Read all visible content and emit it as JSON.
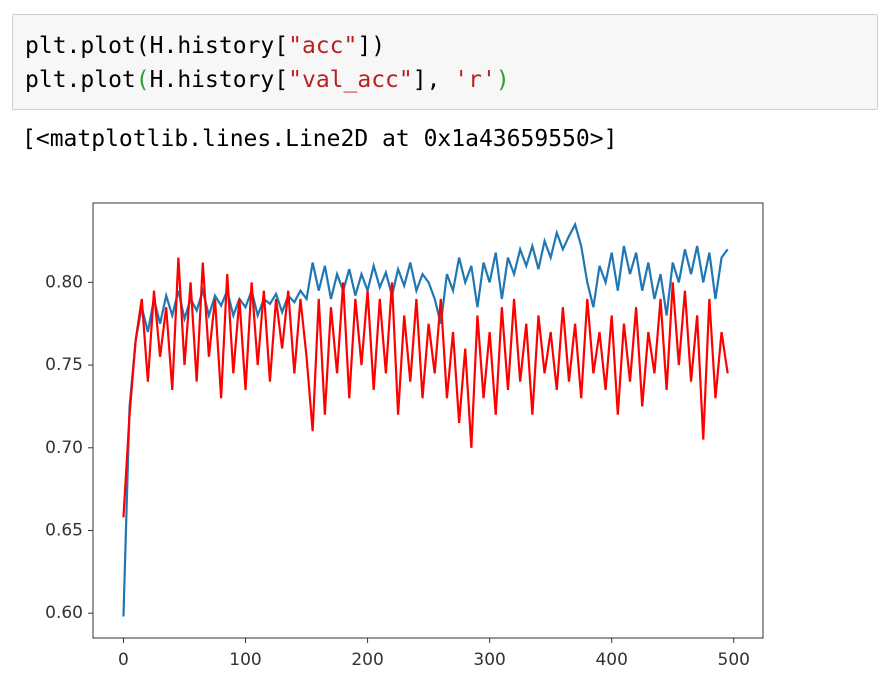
{
  "code": {
    "lines": [
      [
        "plt.plot(H.history[",
        "\"acc\"",
        "])"
      ],
      [
        "plt.plot",
        "(",
        "H.history[",
        "\"val_acc\"",
        "], ",
        "'r'",
        ")"
      ]
    ]
  },
  "output": "[<matplotlib.lines.Line2D at 0x1a43659550>]",
  "chart_data": {
    "type": "line",
    "x": [
      0,
      5,
      10,
      15,
      20,
      25,
      30,
      35,
      40,
      45,
      50,
      55,
      60,
      65,
      70,
      75,
      80,
      85,
      90,
      95,
      100,
      105,
      110,
      115,
      120,
      125,
      130,
      135,
      140,
      145,
      150,
      155,
      160,
      165,
      170,
      175,
      180,
      185,
      190,
      195,
      200,
      205,
      210,
      215,
      220,
      225,
      230,
      235,
      240,
      245,
      250,
      255,
      260,
      265,
      270,
      275,
      280,
      285,
      290,
      295,
      300,
      305,
      310,
      315,
      320,
      325,
      330,
      335,
      340,
      345,
      350,
      355,
      360,
      365,
      370,
      375,
      380,
      385,
      390,
      395,
      400,
      405,
      410,
      415,
      420,
      425,
      430,
      435,
      440,
      445,
      450,
      455,
      460,
      465,
      470,
      475,
      480,
      485,
      490,
      495
    ],
    "series": [
      {
        "color": "#1f77b4",
        "values": [
          0.598,
          0.725,
          0.765,
          0.785,
          0.77,
          0.79,
          0.775,
          0.792,
          0.78,
          0.795,
          0.778,
          0.79,
          0.783,
          0.795,
          0.78,
          0.792,
          0.786,
          0.795,
          0.78,
          0.79,
          0.785,
          0.795,
          0.78,
          0.79,
          0.787,
          0.793,
          0.782,
          0.792,
          0.788,
          0.795,
          0.79,
          0.812,
          0.795,
          0.81,
          0.79,
          0.805,
          0.795,
          0.808,
          0.792,
          0.805,
          0.795,
          0.81,
          0.797,
          0.806,
          0.792,
          0.808,
          0.798,
          0.812,
          0.795,
          0.805,
          0.8,
          0.79,
          0.775,
          0.805,
          0.795,
          0.815,
          0.8,
          0.81,
          0.785,
          0.812,
          0.8,
          0.818,
          0.79,
          0.815,
          0.805,
          0.82,
          0.81,
          0.822,
          0.808,
          0.825,
          0.815,
          0.83,
          0.82,
          0.828,
          0.835,
          0.822,
          0.8,
          0.785,
          0.81,
          0.8,
          0.818,
          0.795,
          0.822,
          0.805,
          0.818,
          0.795,
          0.812,
          0.79,
          0.805,
          0.78,
          0.812,
          0.8,
          0.82,
          0.805,
          0.822,
          0.8,
          0.818,
          0.79,
          0.815,
          0.82
        ]
      },
      {
        "color": "#ff0000",
        "values": [
          0.658,
          0.72,
          0.765,
          0.79,
          0.74,
          0.795,
          0.755,
          0.785,
          0.735,
          0.815,
          0.75,
          0.8,
          0.74,
          0.812,
          0.755,
          0.79,
          0.73,
          0.805,
          0.745,
          0.79,
          0.735,
          0.8,
          0.75,
          0.795,
          0.74,
          0.79,
          0.76,
          0.795,
          0.745,
          0.79,
          0.755,
          0.71,
          0.79,
          0.72,
          0.785,
          0.745,
          0.8,
          0.73,
          0.79,
          0.75,
          0.795,
          0.735,
          0.79,
          0.745,
          0.8,
          0.72,
          0.78,
          0.74,
          0.79,
          0.73,
          0.775,
          0.745,
          0.79,
          0.73,
          0.77,
          0.715,
          0.76,
          0.7,
          0.78,
          0.73,
          0.77,
          0.72,
          0.785,
          0.735,
          0.79,
          0.74,
          0.775,
          0.72,
          0.78,
          0.745,
          0.77,
          0.735,
          0.785,
          0.74,
          0.775,
          0.73,
          0.79,
          0.745,
          0.77,
          0.735,
          0.78,
          0.72,
          0.775,
          0.74,
          0.785,
          0.725,
          0.77,
          0.745,
          0.79,
          0.735,
          0.8,
          0.75,
          0.795,
          0.74,
          0.78,
          0.705,
          0.79,
          0.73,
          0.77,
          0.745
        ]
      }
    ],
    "xlim": [
      -24.95,
      523.95
    ],
    "xticks": [
      0,
      100,
      200,
      300,
      400,
      500
    ],
    "ylim": [
      0.585,
      0.848
    ],
    "yticks": [
      {
        "value": 0.6,
        "label": "0.60"
      },
      0.65,
      {
        "value": 0.7,
        "label": "0.70"
      },
      0.75,
      {
        "value": 0.8,
        "label": "0.80"
      }
    ]
  }
}
